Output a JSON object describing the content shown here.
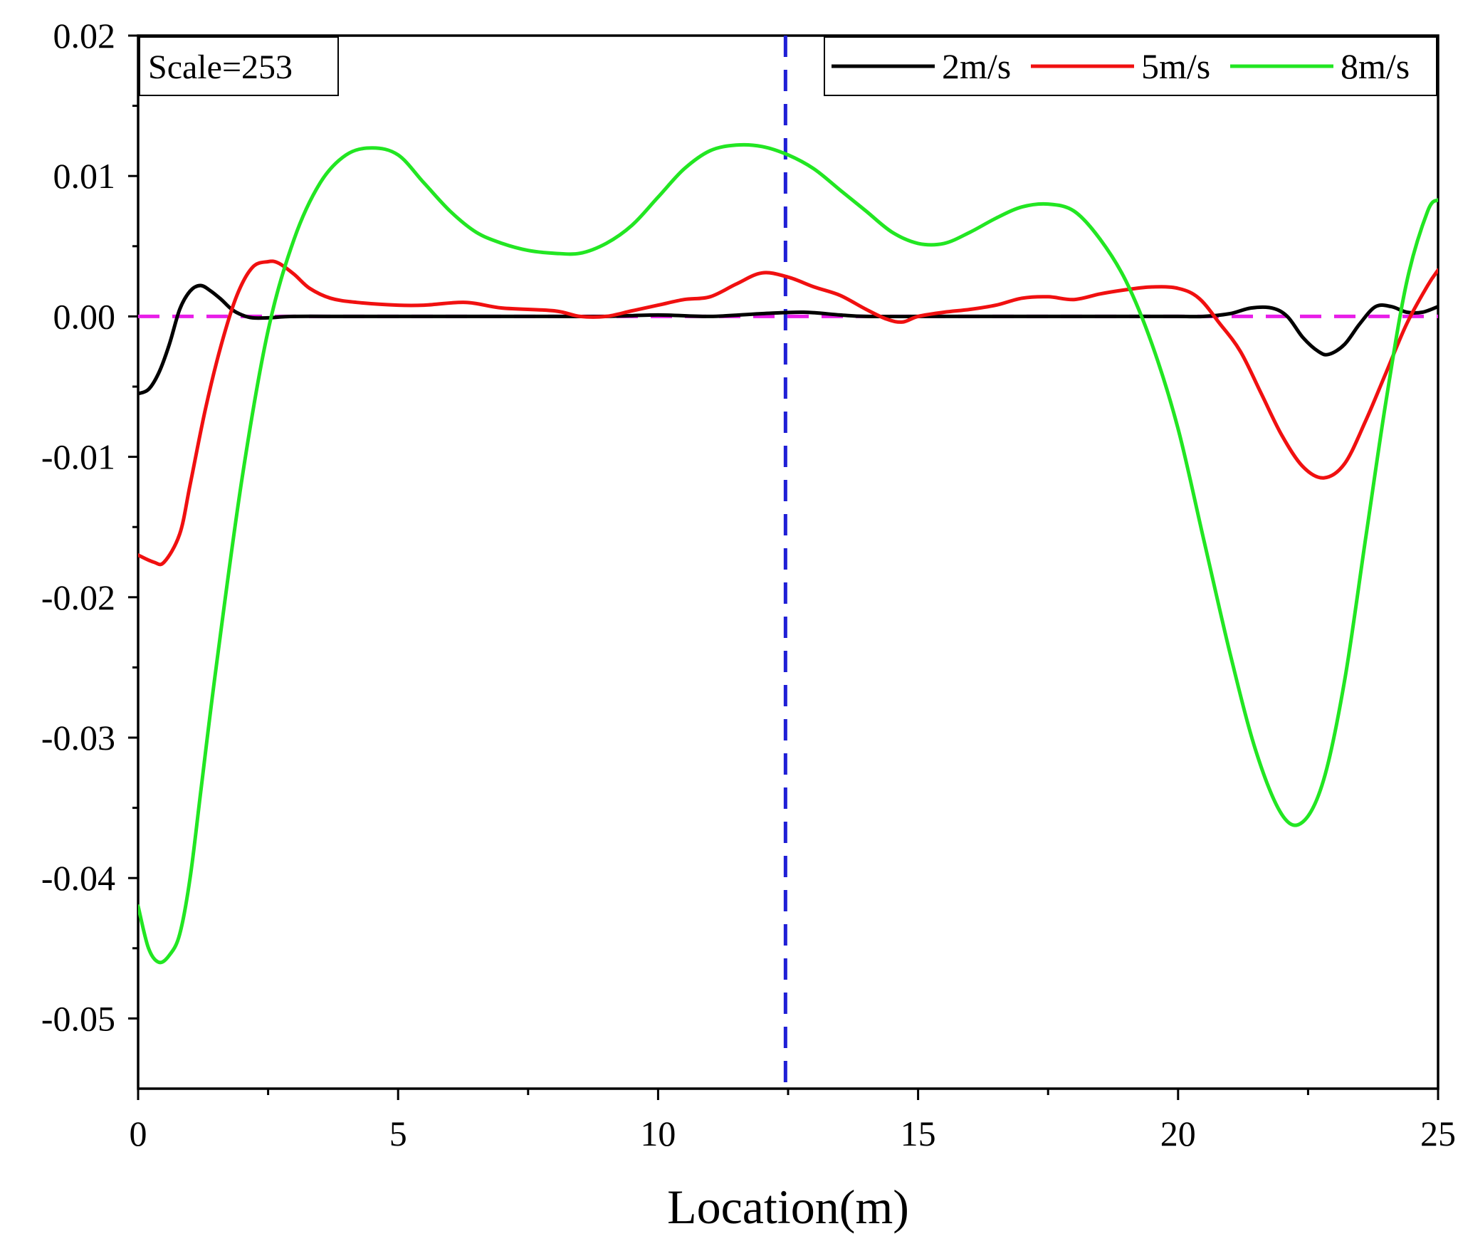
{
  "chart_data": {
    "type": "line",
    "title": "",
    "xlabel": "Location(m)",
    "ylabel": "",
    "xlim": [
      0,
      25
    ],
    "ylim": [
      -0.055,
      0.02
    ],
    "x_ticks": [
      0,
      5,
      10,
      15,
      20,
      25
    ],
    "x_tick_labels": [
      "0",
      "5",
      "10",
      "15",
      "20",
      "25"
    ],
    "y_ticks": [
      0.02,
      0.01,
      0.0,
      -0.01,
      -0.02,
      -0.03,
      -0.04,
      -0.05
    ],
    "y_tick_labels": [
      "0.02",
      "0.01",
      "0.00",
      "-0.01",
      "-0.02",
      "-0.03",
      "-0.04",
      "-0.05"
    ],
    "grid": false,
    "legend_position": "top-right",
    "annotation": "Scale=253",
    "reference_lines": [
      {
        "orientation": "vertical",
        "value": 12.45,
        "color": "#1f1fd6",
        "style": "dashed"
      },
      {
        "orientation": "horizontal",
        "value": 0.0,
        "color": "#e81ee8",
        "style": "dashed"
      }
    ],
    "series": [
      {
        "name": "2m/s",
        "color": "#000000",
        "x": [
          0,
          0.2,
          0.4,
          0.6,
          0.8,
          1.0,
          1.2,
          1.4,
          1.6,
          1.8,
          2.0,
          2.2,
          2.5,
          3,
          4,
          5,
          6,
          7,
          8,
          9,
          10,
          11,
          12,
          12.8,
          13.5,
          14,
          15,
          16,
          17,
          18,
          19,
          20,
          20.5,
          21,
          21.4,
          21.8,
          22.1,
          22.4,
          22.7,
          22.9,
          23.2,
          23.5,
          23.8,
          24.1,
          24.4,
          24.7,
          25
        ],
        "y": [
          -0.0055,
          -0.0052,
          -0.004,
          -0.002,
          0.0005,
          0.0018,
          0.0022,
          0.0018,
          0.0012,
          0.0005,
          0.0001,
          -0.0001,
          -0.0001,
          0.0,
          0.0,
          0.0,
          0.0,
          0.0,
          0.0,
          0.0,
          0.0001,
          0.0,
          0.0002,
          0.0003,
          0.0001,
          0.0,
          0.0,
          0.0,
          0.0,
          0.0,
          0.0,
          0.0,
          0.0,
          0.0002,
          0.0006,
          0.0006,
          0.0,
          -0.0015,
          -0.0025,
          -0.0027,
          -0.002,
          -0.0005,
          0.0007,
          0.0007,
          0.0003,
          0.0003,
          0.0007
        ]
      },
      {
        "name": "5m/s",
        "color": "#f01010",
        "x": [
          0,
          0.3,
          0.5,
          0.8,
          1.0,
          1.3,
          1.6,
          1.9,
          2.2,
          2.5,
          2.7,
          3.0,
          3.3,
          3.7,
          4.2,
          5,
          5.5,
          6.3,
          7,
          8,
          8.5,
          9,
          9.5,
          10,
          10.5,
          11,
          11.5,
          12,
          12.5,
          13,
          13.5,
          14,
          14.4,
          14.7,
          15,
          15.5,
          16,
          16.5,
          17,
          17.5,
          18,
          18.5,
          19,
          19.5,
          20,
          20.4,
          20.8,
          21.2,
          21.6,
          22.0,
          22.4,
          22.8,
          23.2,
          23.6,
          24.0,
          24.4,
          24.8,
          25
        ],
        "y": [
          -0.017,
          -0.0175,
          -0.0175,
          -0.0155,
          -0.012,
          -0.0065,
          -0.002,
          0.0015,
          0.0035,
          0.0039,
          0.0038,
          0.003,
          0.002,
          0.0013,
          0.001,
          0.0008,
          0.0008,
          0.001,
          0.0006,
          0.0004,
          0.0,
          0.0,
          0.0004,
          0.0008,
          0.0012,
          0.0014,
          0.0023,
          0.0031,
          0.0028,
          0.0021,
          0.0015,
          0.0005,
          -0.0002,
          -0.0004,
          0.0,
          0.0003,
          0.0005,
          0.0008,
          0.0013,
          0.0014,
          0.0012,
          0.0016,
          0.0019,
          0.0021,
          0.002,
          0.0013,
          -0.0005,
          -0.0025,
          -0.0055,
          -0.0085,
          -0.0107,
          -0.0115,
          -0.0105,
          -0.0075,
          -0.004,
          -0.0005,
          0.0022,
          0.0033
        ]
      },
      {
        "name": "8m/s",
        "color": "#22e622",
        "x": [
          0,
          0.2,
          0.4,
          0.6,
          0.8,
          1.0,
          1.2,
          1.5,
          2.0,
          2.5,
          3.0,
          3.5,
          4.0,
          4.5,
          5.0,
          5.5,
          6.0,
          6.5,
          7.0,
          7.5,
          8.0,
          8.5,
          9.0,
          9.5,
          10.0,
          10.5,
          11.0,
          11.5,
          12.0,
          12.5,
          13.0,
          13.5,
          14.0,
          14.5,
          15.0,
          15.5,
          16.0,
          16.5,
          17.0,
          17.5,
          18.0,
          18.5,
          19.0,
          19.5,
          20.0,
          20.5,
          21.0,
          21.5,
          22.0,
          22.4,
          22.8,
          23.2,
          23.6,
          24.0,
          24.4,
          24.8,
          25
        ],
        "y": [
          -0.042,
          -0.045,
          -0.046,
          -0.0455,
          -0.044,
          -0.04,
          -0.034,
          -0.025,
          -0.0115,
          -0.001,
          0.0055,
          0.0095,
          0.0115,
          0.012,
          0.0115,
          0.0095,
          0.0075,
          0.006,
          0.0052,
          0.0047,
          0.0045,
          0.0045,
          0.0052,
          0.0065,
          0.0085,
          0.0105,
          0.0118,
          0.0122,
          0.0121,
          0.0115,
          0.0105,
          0.009,
          0.0075,
          0.006,
          0.0052,
          0.0052,
          0.006,
          0.007,
          0.0078,
          0.008,
          0.0075,
          0.0055,
          0.0025,
          -0.002,
          -0.008,
          -0.016,
          -0.024,
          -0.031,
          -0.0355,
          -0.036,
          -0.033,
          -0.026,
          -0.016,
          -0.006,
          0.0025,
          0.0075,
          0.0083
        ]
      }
    ]
  }
}
